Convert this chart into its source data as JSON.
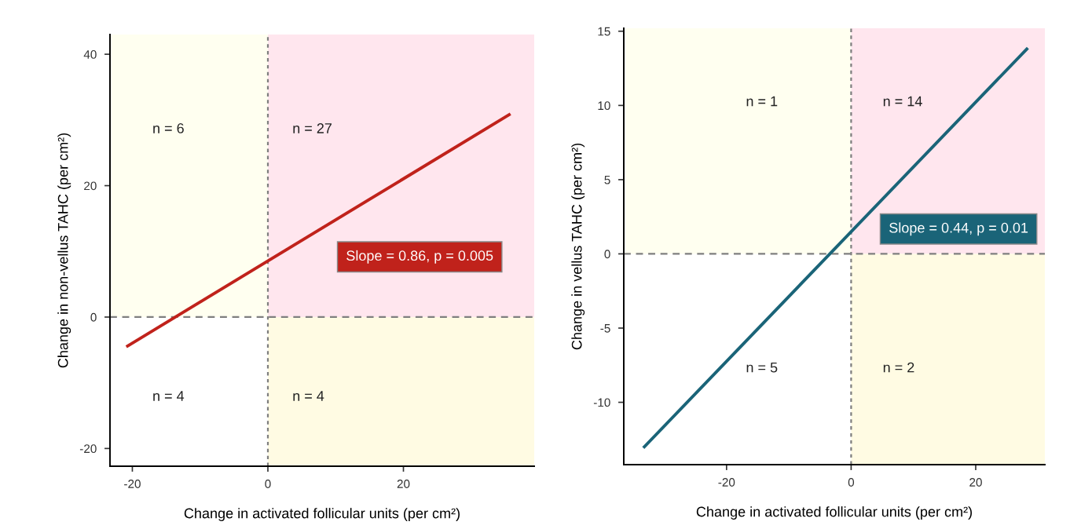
{
  "chart_data": [
    {
      "type": "line",
      "xlabel": "Change in activated follicular units (per cm²)",
      "ylabel": "Change in non-vellus TAHC (per cm²)",
      "series": [
        {
          "color": "#c0221b",
          "x": [
            -20.7,
            35.6
          ],
          "values": [
            -4.4,
            30.8
          ]
        }
      ],
      "xlim": [
        -23.3,
        39.3
      ],
      "ylim": [
        -22.7,
        43
      ],
      "xticks": [
        -20,
        0,
        20
      ],
      "yticks": [
        -20,
        0,
        20,
        40
      ],
      "grid": false,
      "line_style": "solid",
      "marker": "none",
      "ref_lines": [
        {
          "axis": "x",
          "value": 0,
          "color": "#7f7f7f",
          "line_style": "dotted"
        },
        {
          "axis": "y",
          "value": 0,
          "color": "#7f7f7f",
          "line_style": "dashed"
        }
      ],
      "annotations": [
        "n = 6",
        "n = 27",
        "n = 4",
        "n = 4",
        "Slope = 0.86, p = 0.005"
      ]
    },
    {
      "type": "line",
      "xlabel": "Change in activated follicular units (per cm²)",
      "ylabel": "Change in vellus TAHC (per cm²)",
      "series": [
        {
          "color": "#1a6478",
          "x": [
            -33.2,
            28.2
          ],
          "values": [
            -13.0,
            13.8
          ]
        }
      ],
      "xlim": [
        -36.5,
        31.1
      ],
      "ylim": [
        -14.2,
        15.2
      ],
      "xticks": [
        -20,
        0,
        20
      ],
      "yticks": [
        -10,
        -5,
        0,
        5,
        10,
        15
      ],
      "grid": false,
      "line_style": "solid",
      "marker": "none",
      "ref_lines": [
        {
          "axis": "x",
          "value": 0,
          "color": "#7f7f7f",
          "line_style": "dotted"
        },
        {
          "axis": "y",
          "value": 0,
          "color": "#7f7f7f",
          "line_style": "dashed"
        }
      ],
      "annotations": [
        "n = 1",
        "n = 14",
        "n = 5",
        "n = 2",
        "Slope = 0.44, p = 0.01"
      ]
    }
  ]
}
